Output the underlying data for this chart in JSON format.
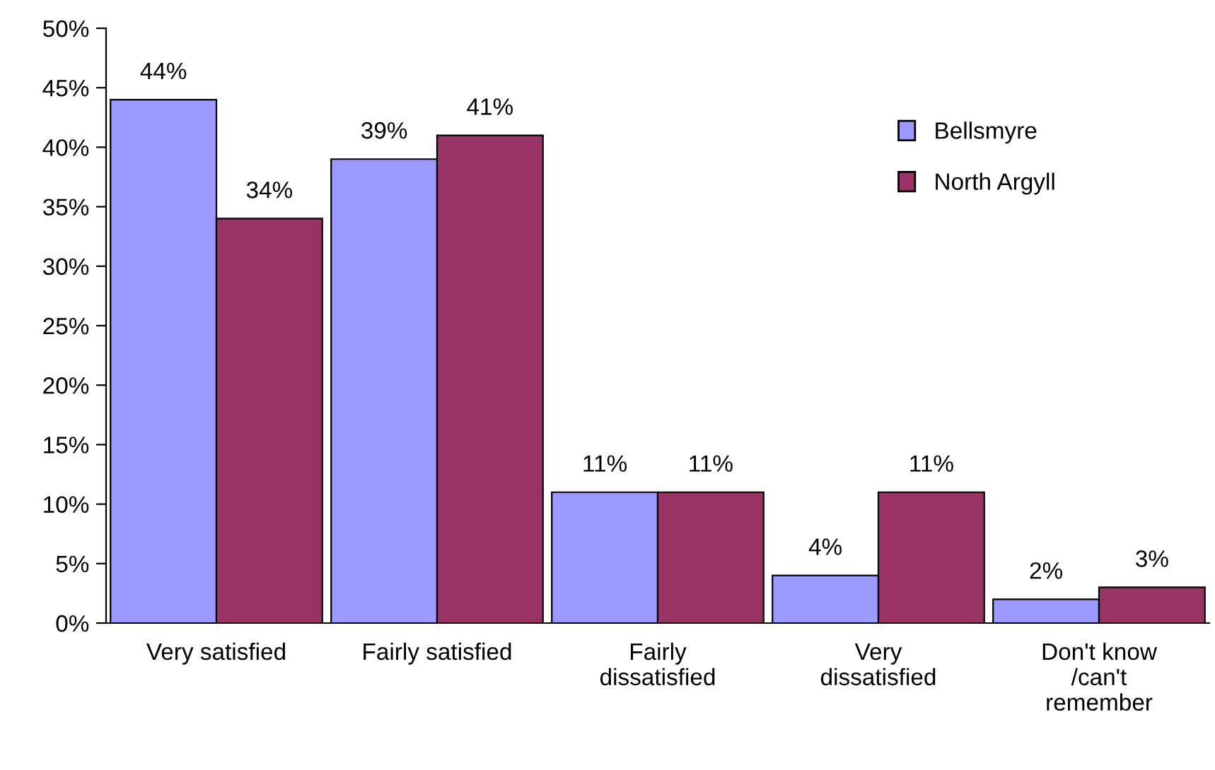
{
  "chart_data": {
    "type": "bar",
    "categories": [
      "Very satisfied",
      "Fairly satisfied",
      "Fairly\ndissatisfied",
      "Very\ndissatisfied",
      "Don't know\n/can't\nremember"
    ],
    "series": [
      {
        "name": "Bellsmyre",
        "color": "#9999ff",
        "values": [
          44,
          39,
          11,
          4,
          2
        ],
        "value_labels": [
          "44%",
          "39%",
          "11%",
          "4%",
          "2%"
        ]
      },
      {
        "name": "North Argyll",
        "color": "#993366",
        "values": [
          34,
          41,
          11,
          11,
          3
        ],
        "value_labels": [
          "34%",
          "41%",
          "11%",
          "11%",
          "3%"
        ]
      }
    ],
    "ylim": [
      0,
      50
    ],
    "yticks": [
      {
        "value": 0,
        "label": "0%"
      },
      {
        "value": 5,
        "label": "5%"
      },
      {
        "value": 10,
        "label": "10%"
      },
      {
        "value": 15,
        "label": "15%"
      },
      {
        "value": 20,
        "label": "20%"
      },
      {
        "value": 25,
        "label": "25%"
      },
      {
        "value": 30,
        "label": "30%"
      },
      {
        "value": 35,
        "label": "35%"
      },
      {
        "value": 40,
        "label": "40%"
      },
      {
        "value": 45,
        "label": "45%"
      },
      {
        "value": 50,
        "label": "50%"
      }
    ],
    "grid": false,
    "legend": "top right"
  }
}
